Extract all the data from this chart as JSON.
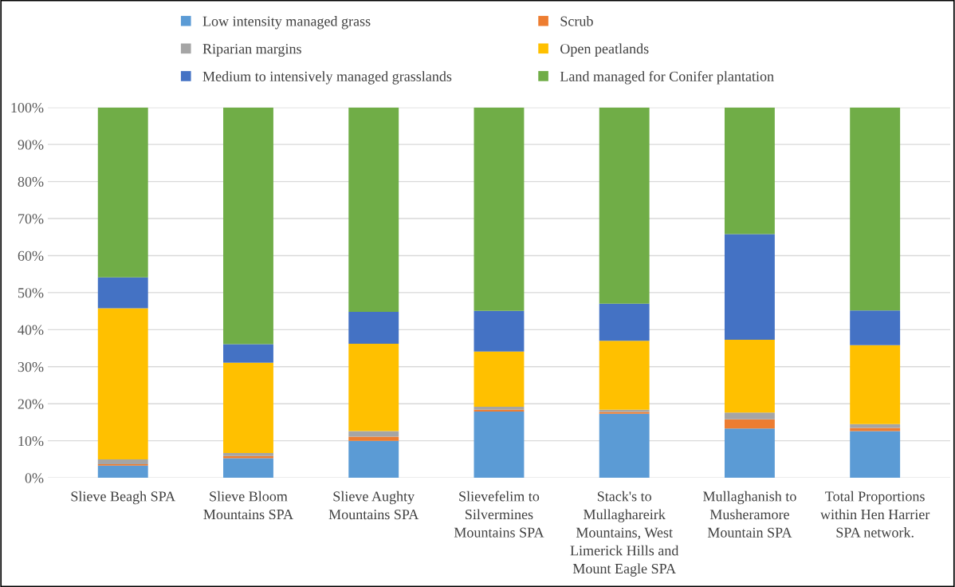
{
  "chart_data": {
    "type": "bar",
    "stacked": true,
    "categories": [
      "Slieve Beagh SPA",
      "Slieve Bloom Mountains SPA",
      "Slieve Aughty Mountains SPA",
      "Slievefelim to Silvermines Mountains SPA",
      "Stack's to Mullaghareirk Mountains, West Limerick Hills and Mount Eagle SPA",
      "Mullaghanish to Musheramore Mountain SPA",
      "Total Proportions within Hen Harrier SPA network."
    ],
    "series": [
      {
        "name": "Low intensity managed grass",
        "color": "#5b9bd5",
        "values": [
          3.3,
          5.3,
          10.0,
          17.9,
          17.3,
          13.3,
          12.6
        ]
      },
      {
        "name": "Scrub",
        "color": "#ed7d31",
        "values": [
          0.4,
          0.6,
          1.1,
          0.5,
          0.5,
          2.5,
          0.9
        ]
      },
      {
        "name": "Riparian margins",
        "color": "#a5a5a5",
        "values": [
          1.3,
          0.8,
          1.5,
          0.8,
          0.6,
          1.8,
          1.0
        ]
      },
      {
        "name": "Open peatlands",
        "color": "#ffc000",
        "values": [
          40.8,
          24.4,
          23.6,
          14.9,
          18.6,
          19.7,
          21.3
        ]
      },
      {
        "name": "Medium to intensively managed grasslands",
        "color": "#4472c4",
        "values": [
          8.3,
          5.0,
          8.6,
          11.0,
          10.0,
          28.5,
          9.4
        ]
      },
      {
        "name": "Land managed for Conifer plantation",
        "color": "#70ad47",
        "values": [
          45.9,
          63.9,
          55.2,
          54.9,
          53.0,
          34.2,
          54.8
        ]
      }
    ],
    "ylim": [
      0,
      100
    ],
    "yticks": [
      {
        "value": 0,
        "label": "0%"
      },
      {
        "value": 10,
        "label": "10%"
      },
      {
        "value": 20,
        "label": "20%"
      },
      {
        "value": 30,
        "label": "30%"
      },
      {
        "value": 40,
        "label": "40%"
      },
      {
        "value": 50,
        "label": "50%"
      },
      {
        "value": 60,
        "label": "60%"
      },
      {
        "value": 70,
        "label": "70%"
      },
      {
        "value": 80,
        "label": "80%"
      },
      {
        "value": 90,
        "label": "90%"
      },
      {
        "value": 100,
        "label": "100%"
      }
    ],
    "grid": "y",
    "legend": "top"
  }
}
